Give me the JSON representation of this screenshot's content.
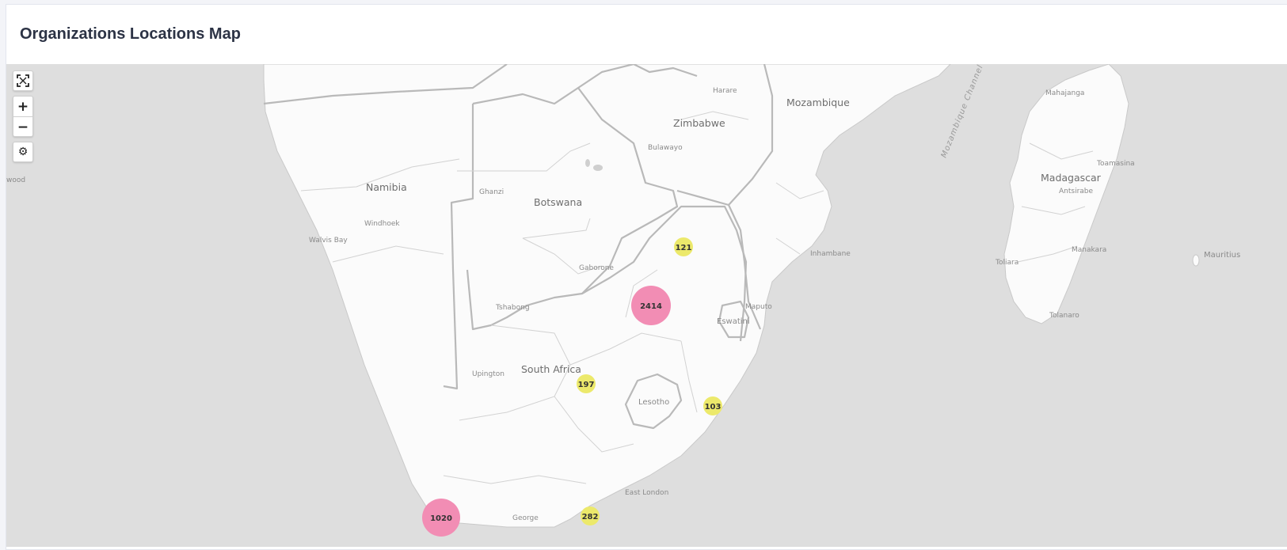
{
  "page": {
    "title": "Organizations Locations Map"
  },
  "controls": {
    "fullscreen_icon": "fullscreen-icon",
    "zoom_in": "+",
    "zoom_out": "−",
    "settings_icon": "gear-icon"
  },
  "map": {
    "countries": {
      "namibia": "Namibia",
      "botswana": "Botswana",
      "zimbabwe": "Zimbabwe",
      "mozambique": "Mozambique",
      "madagascar": "Madagascar",
      "south_africa": "South Africa",
      "lesotho": "Lesotho",
      "eswatini": "Eswatini",
      "mauritius": "Mauritius"
    },
    "cities": {
      "harare": "Harare",
      "bulawayo": "Bulawayo",
      "ghanzi": "Ghanzi",
      "windhoek": "Windhoek",
      "walvis_bay": "Walvis Bay",
      "gaborone": "Gaborone",
      "tshabong": "Tshabong",
      "upington": "Upington",
      "inhambane": "Inhambane",
      "maputo": "Maputo",
      "mahajanga": "Mahajanga",
      "toamasina": "Toamasina",
      "antsirabe": "Antsirabe",
      "toliara": "Toliara",
      "manakara": "Manakara",
      "tolanaro": "Tolanaro",
      "east_london": "East London",
      "george": "George",
      "edge_wood": "wood"
    },
    "water": {
      "channel": "Mozambique Channel"
    },
    "clusters": [
      {
        "count": "121",
        "color": "#ece96b"
      },
      {
        "count": "2414",
        "color": "#f28db4"
      },
      {
        "count": "197",
        "color": "#ece96b"
      },
      {
        "count": "103",
        "color": "#ece96b"
      },
      {
        "count": "1020",
        "color": "#f28db4"
      },
      {
        "count": "282",
        "color": "#ece96b"
      }
    ]
  },
  "colors": {
    "sea": "#dedede",
    "land": "#fbfbfb",
    "cluster_small": "#ece96b",
    "cluster_large": "#f28db4"
  }
}
